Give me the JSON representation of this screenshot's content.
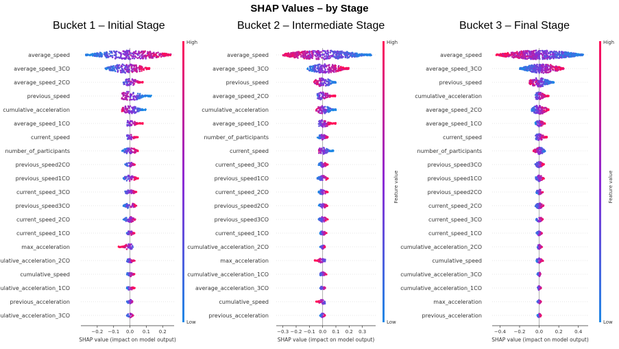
{
  "title": "SHAP Values – by Stage",
  "colors": {
    "high": "#ff0d57",
    "low": "#1e88e5"
  },
  "chart_data": [
    {
      "type": "scatter",
      "subtype": "shap-beeswarm",
      "title": "Bucket 1 – Initial Stage",
      "xlabel": "SHAP value (impact on model output)",
      "colorbar_label": "",
      "colorbar_high": "High",
      "colorbar_low": "Low",
      "xlim": [
        -0.3,
        0.27
      ],
      "xticks": [
        -0.2,
        -0.1,
        0.0,
        0.1,
        0.2
      ],
      "xtick_labels": [
        "−0.2",
        "−0.1",
        "0.0",
        "0.1",
        "0.2"
      ],
      "features": [
        {
          "name": "average_speed",
          "lo": -0.27,
          "hi": 0.25,
          "center": 0.0,
          "hiSide": 1
        },
        {
          "name": "average_speed_3CO",
          "lo": -0.15,
          "hi": 0.12,
          "center": -0.02,
          "hiSide": 1
        },
        {
          "name": "average_speed_2CO",
          "lo": -0.04,
          "hi": 0.08,
          "center": 0.0,
          "hiSide": 1
        },
        {
          "name": "previous_speed",
          "lo": -0.05,
          "hi": 0.13,
          "center": 0.0,
          "hiSide": -1
        },
        {
          "name": "cumulative_acceleration",
          "lo": -0.05,
          "hi": 0.1,
          "center": 0.0,
          "hiSide": -1
        },
        {
          "name": "average_speed_1CO",
          "lo": -0.02,
          "hi": 0.08,
          "center": 0.0,
          "hiSide": 1
        },
        {
          "name": "current_speed",
          "lo": -0.02,
          "hi": 0.05,
          "center": 0.0,
          "hiSide": 1
        },
        {
          "name": "number_of_participants",
          "lo": -0.05,
          "hi": 0.05,
          "center": 0.0,
          "hiSide": 1
        },
        {
          "name": "previous_speed2CO",
          "lo": -0.03,
          "hi": 0.03,
          "center": 0.0,
          "hiSide": 1
        },
        {
          "name": "previous_speed1CO",
          "lo": -0.04,
          "hi": 0.05,
          "center": 0.0,
          "hiSide": 1
        },
        {
          "name": "current_speed_3CO",
          "lo": -0.03,
          "hi": 0.04,
          "center": 0.0,
          "hiSide": 1
        },
        {
          "name": "previous_speed3CO",
          "lo": -0.04,
          "hi": 0.04,
          "center": 0.0,
          "hiSide": 1
        },
        {
          "name": "current_speed_2CO",
          "lo": -0.04,
          "hi": 0.04,
          "center": 0.0,
          "hiSide": 1
        },
        {
          "name": "current_speed_1CO",
          "lo": -0.02,
          "hi": 0.03,
          "center": 0.0,
          "hiSide": 1
        },
        {
          "name": "max_acceleration",
          "lo": -0.07,
          "hi": 0.02,
          "center": 0.0,
          "hiSide": -1
        },
        {
          "name": "cumulative_acceleration_2CO",
          "lo": -0.02,
          "hi": 0.03,
          "center": 0.0,
          "hiSide": 1
        },
        {
          "name": "cumulative_speed",
          "lo": -0.02,
          "hi": 0.03,
          "center": 0.0,
          "hiSide": 1
        },
        {
          "name": "cumulative_acceleration_1CO",
          "lo": -0.02,
          "hi": 0.03,
          "center": 0.0,
          "hiSide": 1
        },
        {
          "name": "previous_acceleration",
          "lo": -0.02,
          "hi": 0.02,
          "center": 0.0,
          "hiSide": 1
        },
        {
          "name": "cumulative_acceleration_3CO",
          "lo": -0.02,
          "hi": 0.02,
          "center": 0.0,
          "hiSide": 1
        }
      ]
    },
    {
      "type": "scatter",
      "subtype": "shap-beeswarm",
      "title": "Bucket 2 – Intermediate Stage",
      "xlabel": "SHAP value (impact on model output)",
      "colorbar_label": "Feature value",
      "colorbar_high": "High",
      "colorbar_low": "Low",
      "xlim": [
        -0.35,
        0.4
      ],
      "xticks": [
        -0.3,
        -0.2,
        -0.1,
        0.0,
        0.1,
        0.2,
        0.3
      ],
      "xtick_labels": [
        "−0.3",
        "−0.2",
        "−0.1",
        "0.0",
        "0.1",
        "0.2",
        "0.3"
      ],
      "features": [
        {
          "name": "average_speed",
          "lo": -0.3,
          "hi": 0.37,
          "center": 0.0,
          "hiSide": -1
        },
        {
          "name": "average_speed_3CO",
          "lo": -0.12,
          "hi": 0.2,
          "center": 0.02,
          "hiSide": 1
        },
        {
          "name": "previous_speed",
          "lo": -0.07,
          "hi": 0.1,
          "center": 0.0,
          "hiSide": -1
        },
        {
          "name": "average_speed_2CO",
          "lo": -0.04,
          "hi": 0.1,
          "center": 0.0,
          "hiSide": 1
        },
        {
          "name": "cumulative_acceleration",
          "lo": -0.05,
          "hi": 0.1,
          "center": 0.0,
          "hiSide": -1
        },
        {
          "name": "average_speed_1CO",
          "lo": -0.03,
          "hi": 0.1,
          "center": 0.0,
          "hiSide": 1
        },
        {
          "name": "number_of_participants",
          "lo": -0.04,
          "hi": 0.04,
          "center": 0.0,
          "hiSide": 1
        },
        {
          "name": "current_speed",
          "lo": -0.03,
          "hi": 0.08,
          "center": 0.0,
          "hiSide": -1
        },
        {
          "name": "current_speed_3CO",
          "lo": -0.03,
          "hi": 0.04,
          "center": 0.0,
          "hiSide": 1
        },
        {
          "name": "previous_speed1CO",
          "lo": -0.04,
          "hi": 0.04,
          "center": 0.0,
          "hiSide": 1
        },
        {
          "name": "current_speed_2CO",
          "lo": -0.03,
          "hi": 0.04,
          "center": 0.0,
          "hiSide": 1
        },
        {
          "name": "previous_speed2CO",
          "lo": -0.03,
          "hi": 0.04,
          "center": 0.0,
          "hiSide": 1
        },
        {
          "name": "previous_speed3CO",
          "lo": -0.03,
          "hi": 0.04,
          "center": 0.0,
          "hiSide": 1
        },
        {
          "name": "current_speed_1CO",
          "lo": -0.02,
          "hi": 0.03,
          "center": 0.0,
          "hiSide": 1
        },
        {
          "name": "cumulative_acceleration_2CO",
          "lo": -0.02,
          "hi": 0.02,
          "center": 0.0,
          "hiSide": 1
        },
        {
          "name": "max_acceleration",
          "lo": -0.06,
          "hi": 0.02,
          "center": 0.0,
          "hiSide": -1
        },
        {
          "name": "cumulative_acceleration_1CO",
          "lo": -0.02,
          "hi": 0.03,
          "center": 0.0,
          "hiSide": 1
        },
        {
          "name": "average_acceleration_3CO",
          "lo": -0.02,
          "hi": 0.02,
          "center": 0.0,
          "hiSide": 1
        },
        {
          "name": "cumulative_speed",
          "lo": -0.05,
          "hi": 0.02,
          "center": 0.0,
          "hiSide": -1
        },
        {
          "name": "previous_acceleration",
          "lo": -0.02,
          "hi": 0.02,
          "center": 0.0,
          "hiSide": 1
        }
      ]
    },
    {
      "type": "scatter",
      "subtype": "shap-beeswarm",
      "title": "Bucket 3 – Final Stage",
      "xlabel": "SHAP value (impact on model output)",
      "colorbar_label": "Feature value",
      "colorbar_high": "High",
      "colorbar_low": "Low",
      "xlim": [
        -0.48,
        0.5
      ],
      "xticks": [
        -0.4,
        -0.2,
        0.0,
        0.2,
        0.4
      ],
      "xtick_labels": [
        "−0.4",
        "−0.2",
        "0.0",
        "0.2",
        "0.4"
      ],
      "features": [
        {
          "name": "average_speed",
          "lo": -0.44,
          "hi": 0.45,
          "center": 0.0,
          "hiSide": -1
        },
        {
          "name": "average_speed_3CO",
          "lo": -0.2,
          "hi": 0.25,
          "center": 0.03,
          "hiSide": 1
        },
        {
          "name": "previous_speed",
          "lo": -0.1,
          "hi": 0.15,
          "center": 0.0,
          "hiSide": -1
        },
        {
          "name": "cumulative_acceleration",
          "lo": -0.04,
          "hi": 0.1,
          "center": 0.0,
          "hiSide": 1
        },
        {
          "name": "average_speed_2CO",
          "lo": -0.08,
          "hi": 0.1,
          "center": 0.0,
          "hiSide": 1
        },
        {
          "name": "average_speed_1CO",
          "lo": -0.04,
          "hi": 0.06,
          "center": 0.0,
          "hiSide": 1
        },
        {
          "name": "current_speed",
          "lo": -0.04,
          "hi": 0.08,
          "center": 0.0,
          "hiSide": 1
        },
        {
          "name": "number_of_participants",
          "lo": -0.06,
          "hi": 0.06,
          "center": 0.0,
          "hiSide": -1
        },
        {
          "name": "previous_speed3CO",
          "lo": -0.04,
          "hi": 0.05,
          "center": 0.0,
          "hiSide": 1
        },
        {
          "name": "previous_speed1CO",
          "lo": -0.04,
          "hi": 0.05,
          "center": 0.0,
          "hiSide": 1
        },
        {
          "name": "previous_speed2CO",
          "lo": -0.03,
          "hi": 0.04,
          "center": 0.0,
          "hiSide": 1
        },
        {
          "name": "current_speed_2CO",
          "lo": -0.04,
          "hi": 0.05,
          "center": 0.0,
          "hiSide": 1
        },
        {
          "name": "current_speed_3CO",
          "lo": -0.03,
          "hi": 0.04,
          "center": 0.0,
          "hiSide": 1
        },
        {
          "name": "current_speed_1CO",
          "lo": -0.03,
          "hi": 0.03,
          "center": 0.0,
          "hiSide": 1
        },
        {
          "name": "cumulative_acceleration_2CO",
          "lo": -0.02,
          "hi": 0.03,
          "center": 0.0,
          "hiSide": 1
        },
        {
          "name": "cumulative_speed",
          "lo": -0.03,
          "hi": 0.04,
          "center": 0.0,
          "hiSide": 1
        },
        {
          "name": "cumulative_acceleration_3CO",
          "lo": -0.02,
          "hi": 0.02,
          "center": 0.0,
          "hiSide": 1
        },
        {
          "name": "cumulative_acceleration_1CO",
          "lo": -0.02,
          "hi": 0.02,
          "center": 0.0,
          "hiSide": 1
        },
        {
          "name": "max_acceleration",
          "lo": -0.02,
          "hi": 0.02,
          "center": 0.0,
          "hiSide": 1
        },
        {
          "name": "previous_acceleration",
          "lo": -0.02,
          "hi": 0.02,
          "center": 0.0,
          "hiSide": 1
        }
      ]
    }
  ]
}
